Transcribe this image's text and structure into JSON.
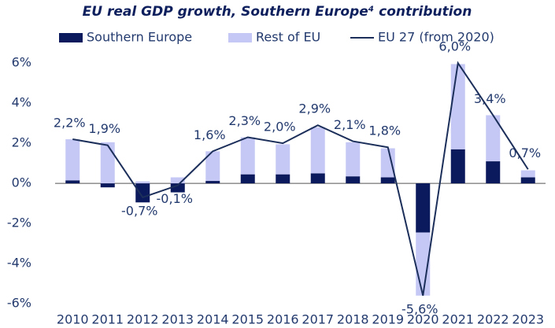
{
  "chart_data": {
    "type": "bar",
    "stacked": true,
    "title": "EU real GDP growth, Southern Europe⁴ contribution",
    "categories": [
      "2010",
      "2011",
      "2012",
      "2013",
      "2014",
      "2015",
      "2016",
      "2017",
      "2018",
      "2019",
      "2020",
      "2021",
      "2022",
      "2023"
    ],
    "series": [
      {
        "name": "Southern Europe",
        "type": "bar",
        "color": "#0b1a5c",
        "values": [
          0.15,
          -0.2,
          -0.95,
          -0.45,
          0.12,
          0.45,
          0.45,
          0.5,
          0.35,
          0.3,
          -2.45,
          1.7,
          1.1,
          0.3
        ]
      },
      {
        "name": "Rest of EU",
        "type": "bar",
        "color": "#c5c8f5",
        "values": [
          2.05,
          2.05,
          0.1,
          0.3,
          1.48,
          1.85,
          1.5,
          2.3,
          1.7,
          1.45,
          -3.15,
          4.25,
          2.3,
          0.35
        ]
      },
      {
        "name": "EU 27 (from 2020)",
        "type": "line",
        "color": "#1c2f5a",
        "values": [
          2.2,
          1.9,
          -0.7,
          -0.1,
          1.6,
          2.3,
          2.0,
          2.9,
          2.1,
          1.8,
          -5.6,
          6.0,
          3.4,
          0.7
        ],
        "value_labels": [
          "2,2%",
          "1,9%",
          "-0,7%",
          "-0,1%",
          "1,6%",
          "2,3%",
          "2,0%",
          "2,9%",
          "2,1%",
          "1,8%",
          "-5,6%",
          "6,0%",
          "3,4%",
          "0,7%"
        ]
      }
    ],
    "ylim": [
      -6,
      6.4
    ],
    "yticks": [
      {
        "value": -6,
        "label": "-6%"
      },
      {
        "value": -4,
        "label": "-4%"
      },
      {
        "value": -2,
        "label": "-2%"
      },
      {
        "value": 0,
        "label": "0%"
      },
      {
        "value": 2,
        "label": "2%"
      },
      {
        "value": 4,
        "label": "4%"
      },
      {
        "value": 6,
        "label": "6%"
      }
    ],
    "grid": false
  }
}
